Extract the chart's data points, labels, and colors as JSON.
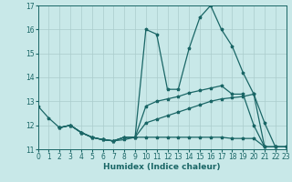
{
  "xlabel": "Humidex (Indice chaleur)",
  "xlim": [
    0,
    23
  ],
  "ylim": [
    11,
    17
  ],
  "yticks": [
    11,
    12,
    13,
    14,
    15,
    16,
    17
  ],
  "xticks": [
    0,
    1,
    2,
    3,
    4,
    5,
    6,
    7,
    8,
    9,
    10,
    11,
    12,
    13,
    14,
    15,
    16,
    17,
    18,
    19,
    20,
    21,
    22,
    23
  ],
  "bg_color": "#c8e8e8",
  "grid_color": "#aacccc",
  "line_color": "#1a6666",
  "curve1_x": [
    0,
    1,
    2,
    3,
    4,
    5,
    6,
    7,
    8,
    9,
    10,
    11,
    12,
    13,
    14,
    15,
    16,
    17,
    18,
    19,
    20,
    21,
    22,
    23
  ],
  "curve1_y": [
    12.8,
    12.3,
    11.9,
    12.0,
    11.7,
    11.5,
    11.4,
    11.35,
    11.4,
    11.5,
    16.0,
    15.8,
    13.5,
    13.5,
    15.2,
    16.5,
    17.0,
    16.0,
    15.3,
    14.2,
    13.3,
    12.1,
    11.1,
    11.1
  ],
  "curve2_x": [
    2,
    3,
    4,
    5,
    6,
    7,
    8,
    9,
    10,
    11,
    12,
    13,
    14,
    15,
    16,
    17,
    18,
    19,
    20,
    21,
    22,
    23
  ],
  "curve2_y": [
    11.9,
    12.0,
    11.7,
    11.5,
    11.4,
    11.35,
    11.5,
    11.5,
    12.8,
    13.0,
    13.1,
    13.2,
    13.35,
    13.45,
    13.55,
    13.65,
    13.3,
    13.3,
    12.0,
    11.1,
    11.1,
    11.1
  ],
  "curve3_x": [
    2,
    3,
    4,
    5,
    6,
    7,
    8,
    9,
    10,
    11,
    12,
    13,
    14,
    15,
    16,
    17,
    18,
    19,
    20,
    21,
    22,
    23
  ],
  "curve3_y": [
    11.9,
    12.0,
    11.7,
    11.5,
    11.4,
    11.35,
    11.5,
    11.5,
    12.1,
    12.25,
    12.4,
    12.55,
    12.7,
    12.85,
    13.0,
    13.1,
    13.15,
    13.2,
    13.3,
    11.1,
    11.1,
    11.1
  ],
  "curve4_x": [
    2,
    3,
    4,
    5,
    6,
    7,
    8,
    9,
    10,
    11,
    12,
    13,
    14,
    15,
    16,
    17,
    18,
    19,
    20,
    21,
    22,
    23
  ],
  "curve4_y": [
    11.9,
    12.0,
    11.7,
    11.5,
    11.4,
    11.35,
    11.5,
    11.5,
    11.5,
    11.5,
    11.5,
    11.5,
    11.5,
    11.5,
    11.5,
    11.5,
    11.45,
    11.45,
    11.45,
    11.1,
    11.1,
    11.1
  ]
}
